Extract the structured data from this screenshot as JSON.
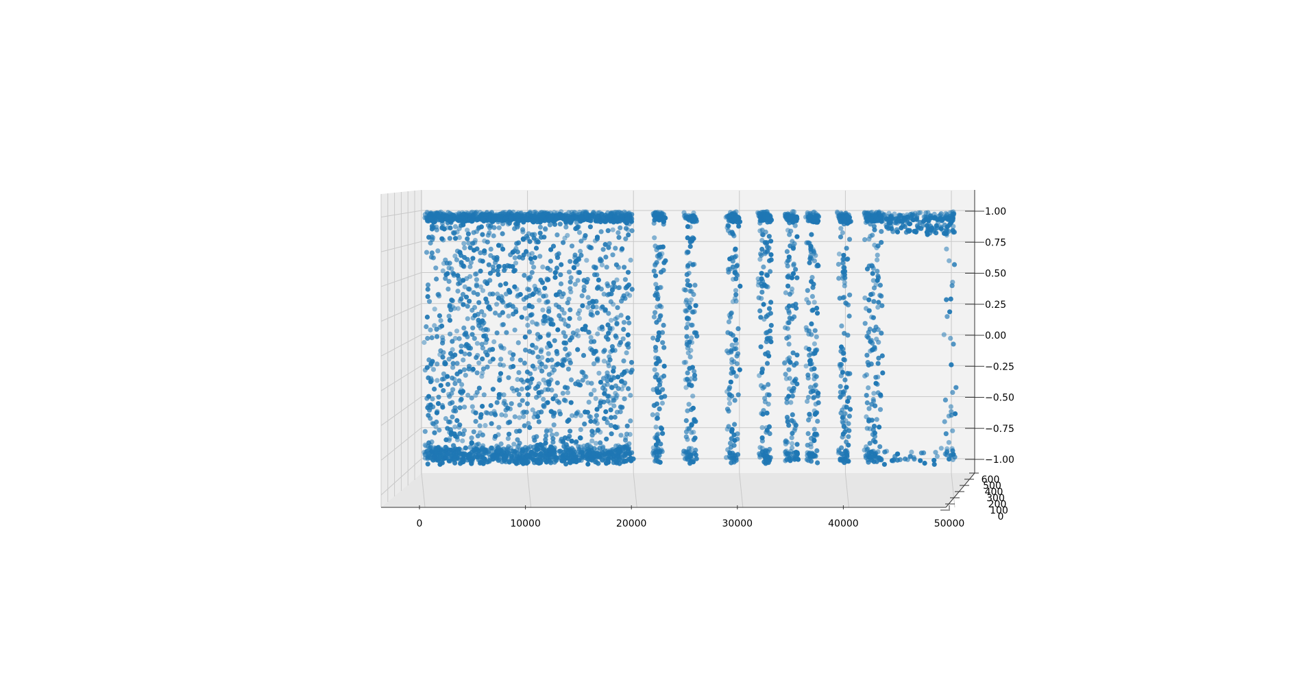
{
  "chart_data": {
    "type": "scatter",
    "projection": "3d",
    "title": "",
    "xlabel": "",
    "ylabel": "",
    "zlabel": "",
    "marker_color": "#1f77b4",
    "grid": true,
    "pane_color": "#f2f2f2",
    "x_range": [
      0,
      50000
    ],
    "y_range": [
      0,
      600
    ],
    "z_range": [
      -1.0,
      1.0
    ],
    "x_ticks": [
      "0",
      "10000",
      "20000",
      "30000",
      "40000",
      "50000"
    ],
    "y_ticks": [
      "0",
      "100",
      "200",
      "300",
      "400",
      "500",
      "600"
    ],
    "z_ticks": [
      "1.00",
      "0.75",
      "0.50",
      "0.25",
      "0.00",
      "−0.25",
      "−0.50",
      "−0.75",
      "−1.00"
    ],
    "x_tick_values": [
      0,
      10000,
      20000,
      30000,
      40000,
      50000
    ],
    "y_tick_values": [
      0,
      100,
      200,
      300,
      400,
      500,
      600
    ],
    "z_tick_values": [
      1.0,
      0.75,
      0.5,
      0.25,
      0.0,
      -0.25,
      -0.5,
      -0.75,
      -1.0
    ],
    "series": [
      {
        "description_bands": [
          {
            "x": [
              0,
              19500
            ],
            "z": [
              -1.0,
              1.0
            ]
          },
          {
            "x": [
              21500,
              22500
            ],
            "z": [
              -1.0,
              1.0
            ]
          },
          {
            "x": [
              24500,
              25500
            ],
            "z": [
              -1.0,
              1.0
            ]
          },
          {
            "x": [
              28500,
              29500
            ],
            "z": [
              -1.0,
              1.0
            ]
          },
          {
            "x": [
              31500,
              32500
            ],
            "z": [
              -1.0,
              1.0
            ]
          },
          {
            "x": [
              34000,
              35000
            ],
            "z": [
              -1.0,
              1.0
            ]
          },
          {
            "x": [
              36000,
              37000
            ],
            "z": [
              -1.0,
              1.0
            ]
          },
          {
            "x": [
              39000,
              40000
            ],
            "z": [
              -1.0,
              1.0
            ]
          },
          {
            "x": [
              41500,
              43000
            ],
            "z": [
              -1.0,
              1.0
            ]
          },
          {
            "x": [
              43000,
              50000
            ],
            "z": [
              0.85,
              1.0
            ]
          },
          {
            "x": [
              49000,
              50000
            ],
            "z": [
              -0.9,
              1.0
            ]
          }
        ]
      }
    ]
  }
}
